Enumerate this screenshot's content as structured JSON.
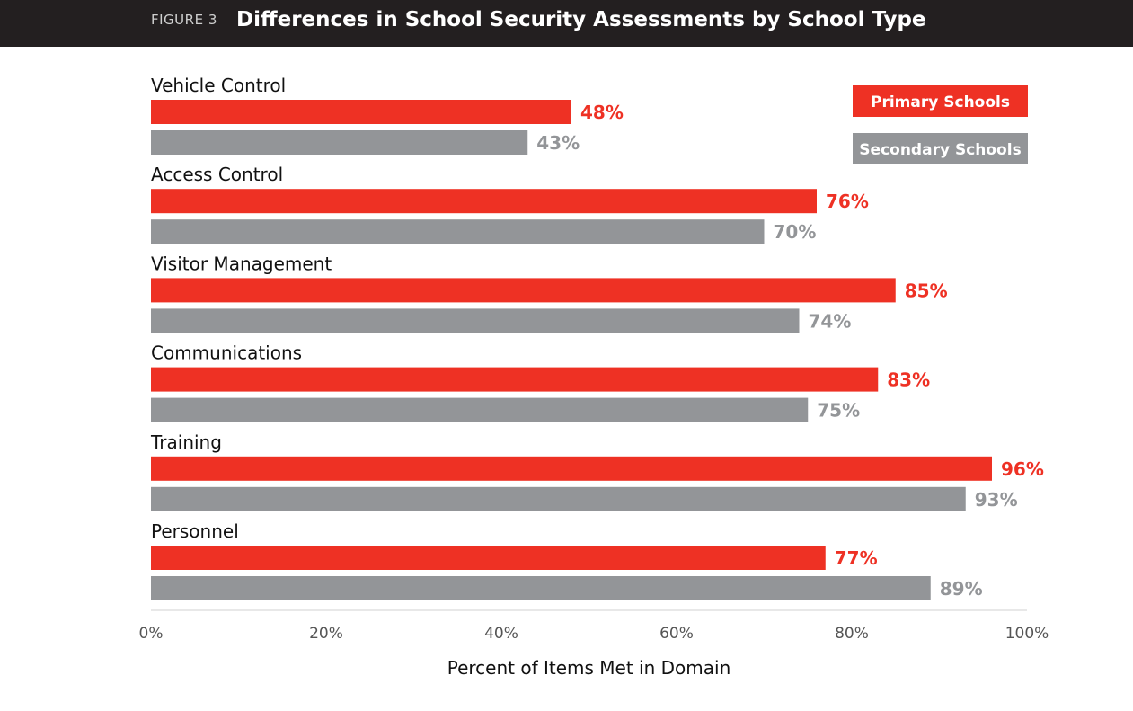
{
  "header": {
    "figure_label": "FIGURE 3",
    "title": "Differences in School Security Assessments by School Type"
  },
  "chart_data": {
    "type": "bar",
    "orientation": "horizontal",
    "title": "Differences in School Security Assessments by School Type",
    "xlabel": "Percent of Items Met in Domain",
    "ylabel": "",
    "xlim": [
      0,
      100
    ],
    "x_ticks": [
      "0%",
      "20%",
      "40%",
      "60%",
      "80%",
      "100%"
    ],
    "categories": [
      "Vehicle Control",
      "Access Control",
      "Visitor Management",
      "Communications",
      "Training",
      "Personnel"
    ],
    "series": [
      {
        "name": "Primary Schools",
        "color": "#ee3124",
        "values": [
          48,
          76,
          85,
          83,
          96,
          77
        ],
        "labels": [
          "48%",
          "76%",
          "85%",
          "83%",
          "96%",
          "77%"
        ]
      },
      {
        "name": "Secondary Schools",
        "color": "#939598",
        "values": [
          43,
          70,
          74,
          75,
          93,
          89
        ],
        "labels": [
          "43%",
          "70%",
          "74%",
          "75%",
          "93%",
          "89%"
        ]
      }
    ],
    "legend_position": "top-right",
    "grid": false
  }
}
